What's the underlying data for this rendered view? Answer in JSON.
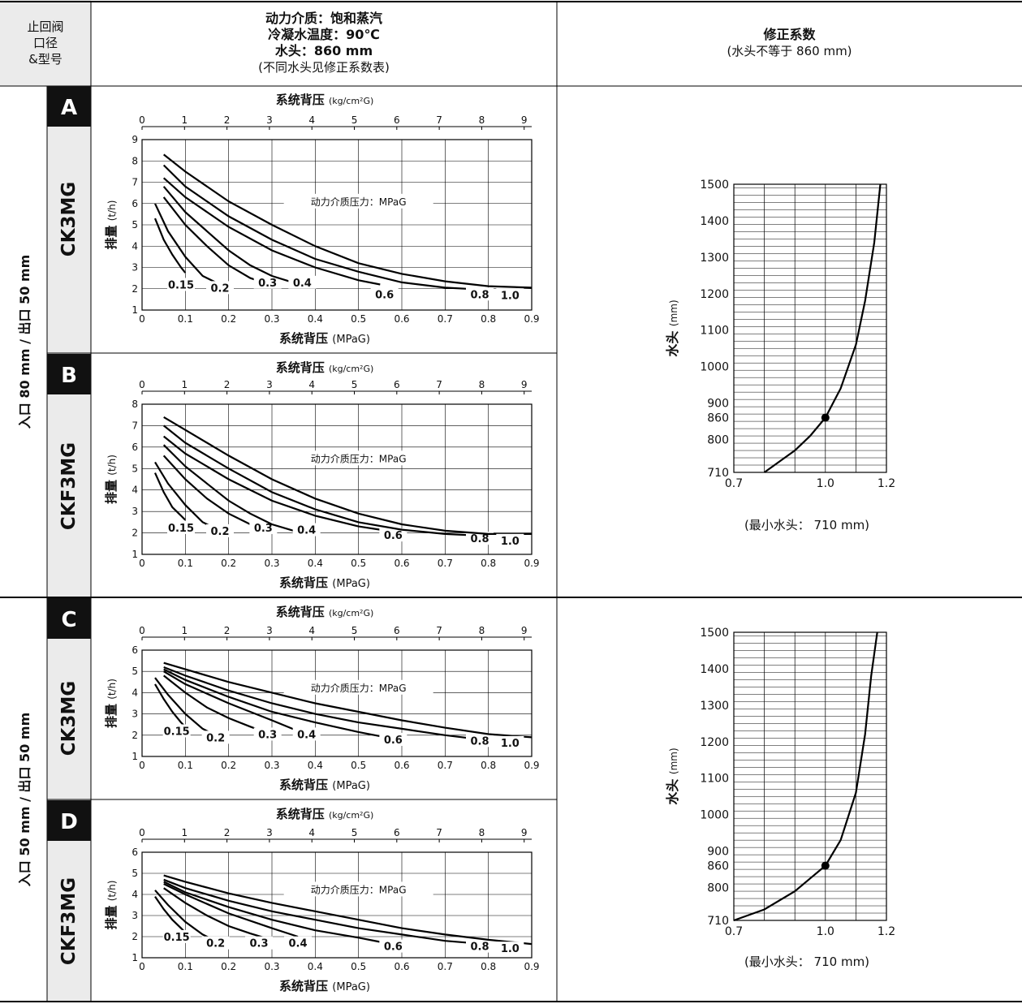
{
  "header": {
    "col1": [
      "止回阀",
      "口径",
      "&型号"
    ],
    "col2": [
      "动力介质：饱和蒸汽",
      "冷凝水温度：90℃",
      "水头：860 mm",
      "(不同水头见修正系数表)"
    ],
    "col3": [
      "修正系数",
      "(水头不等于 860 mm)"
    ]
  },
  "groups": [
    {
      "size_label": "入口 80 mm / 出口 50 mm"
    },
    {
      "size_label": "入口 50 mm / 出口 50 mm"
    }
  ],
  "chart_data": [
    {
      "type": "line",
      "id": "A",
      "letter": "A",
      "model": "CK3MG",
      "top_axis_label": "系统背压",
      "top_axis_unit": "(kg/cm²G)",
      "top_ticks": [
        "0",
        "1",
        "2",
        "3",
        "4",
        "5",
        "6",
        "7",
        "8",
        "9"
      ],
      "xlabel": "系统背压",
      "xlabel_unit": "(MPaG)",
      "ylabel": "排量",
      "ylabel_unit": "(t/h)",
      "xlim": [
        0,
        0.9
      ],
      "ylim": [
        1,
        9
      ],
      "x_ticks": [
        "0",
        "0.1",
        "0.2",
        "0.3",
        "0.4",
        "0.5",
        "0.6",
        "0.7",
        "0.8",
        "0.9"
      ],
      "y_ticks": [
        "1",
        "2",
        "3",
        "4",
        "5",
        "6",
        "7",
        "8",
        "9"
      ],
      "legend_title": "动力介质压力：MPaG",
      "series": [
        {
          "name": "0.15",
          "x": [
            0.03,
            0.05,
            0.07,
            0.09,
            0.1
          ],
          "y": [
            5.3,
            4.3,
            3.6,
            3.0,
            2.75
          ],
          "label_x": 0.09,
          "label_y": 2.05
        },
        {
          "name": "0.2",
          "x": [
            0.03,
            0.06,
            0.1,
            0.14,
            0.17
          ],
          "y": [
            6.0,
            4.7,
            3.5,
            2.6,
            2.3
          ],
          "label_x": 0.18,
          "label_y": 1.9
        },
        {
          "name": "0.3",
          "x": [
            0.05,
            0.1,
            0.15,
            0.2,
            0.25,
            0.28
          ],
          "y": [
            6.3,
            5.0,
            4.0,
            3.1,
            2.5,
            2.3
          ],
          "label_x": 0.29,
          "label_y": 2.15
        },
        {
          "name": "0.4",
          "x": [
            0.05,
            0.1,
            0.15,
            0.2,
            0.25,
            0.3,
            0.34
          ],
          "y": [
            6.8,
            5.6,
            4.7,
            3.8,
            3.1,
            2.6,
            2.35
          ],
          "label_x": 0.37,
          "label_y": 2.15
        },
        {
          "name": "0.6",
          "x": [
            0.05,
            0.1,
            0.2,
            0.3,
            0.4,
            0.5,
            0.55
          ],
          "y": [
            7.2,
            6.3,
            4.9,
            3.8,
            3.0,
            2.4,
            2.2
          ],
          "label_x": 0.56,
          "label_y": 1.6
        },
        {
          "name": "0.8",
          "x": [
            0.05,
            0.1,
            0.2,
            0.3,
            0.4,
            0.5,
            0.6,
            0.7,
            0.75
          ],
          "y": [
            7.8,
            6.8,
            5.4,
            4.3,
            3.4,
            2.8,
            2.3,
            2.05,
            2.0
          ],
          "label_x": 0.78,
          "label_y": 1.6
        },
        {
          "name": "1.0",
          "x": [
            0.05,
            0.1,
            0.2,
            0.3,
            0.4,
            0.5,
            0.6,
            0.7,
            0.8,
            0.9
          ],
          "y": [
            8.3,
            7.5,
            6.1,
            5.0,
            4.0,
            3.2,
            2.7,
            2.35,
            2.12,
            2.05
          ],
          "label_x": 0.85,
          "label_y": 1.55
        }
      ]
    },
    {
      "type": "line",
      "id": "B",
      "letter": "B",
      "model": "CKF3MG",
      "top_axis_label": "系统背压",
      "top_axis_unit": "(kg/cm²G)",
      "top_ticks": [
        "0",
        "1",
        "2",
        "3",
        "4",
        "5",
        "6",
        "7",
        "8",
        "9"
      ],
      "xlabel": "系统背压",
      "xlabel_unit": "(MPaG)",
      "ylabel": "排量",
      "ylabel_unit": "(t/h)",
      "xlim": [
        0,
        0.9
      ],
      "ylim": [
        1,
        8
      ],
      "x_ticks": [
        "0",
        "0.1",
        "0.2",
        "0.3",
        "0.4",
        "0.5",
        "0.6",
        "0.7",
        "0.8",
        "0.9"
      ],
      "y_ticks": [
        "1",
        "2",
        "3",
        "4",
        "5",
        "6",
        "7",
        "8"
      ],
      "legend_title": "动力介质压力：MPaG",
      "series": [
        {
          "name": "0.15",
          "x": [
            0.03,
            0.05,
            0.07,
            0.09,
            0.1
          ],
          "y": [
            4.8,
            3.9,
            3.2,
            2.8,
            2.6
          ],
          "label_x": 0.09,
          "label_y": 2.1
        },
        {
          "name": "0.2",
          "x": [
            0.03,
            0.06,
            0.1,
            0.14,
            0.17
          ],
          "y": [
            5.3,
            4.3,
            3.3,
            2.5,
            2.2
          ],
          "label_x": 0.18,
          "label_y": 1.95
        },
        {
          "name": "0.3",
          "x": [
            0.05,
            0.1,
            0.15,
            0.2,
            0.25,
            0.28
          ],
          "y": [
            5.6,
            4.5,
            3.6,
            2.9,
            2.4,
            2.2
          ],
          "label_x": 0.28,
          "label_y": 2.1
        },
        {
          "name": "0.4",
          "x": [
            0.05,
            0.1,
            0.15,
            0.2,
            0.25,
            0.3,
            0.35
          ],
          "y": [
            6.1,
            5.1,
            4.3,
            3.5,
            2.9,
            2.4,
            2.1
          ],
          "label_x": 0.38,
          "label_y": 2.0
        },
        {
          "name": "0.6",
          "x": [
            0.05,
            0.1,
            0.2,
            0.3,
            0.4,
            0.5,
            0.55
          ],
          "y": [
            6.5,
            5.7,
            4.5,
            3.5,
            2.8,
            2.3,
            2.15
          ],
          "label_x": 0.58,
          "label_y": 1.75
        },
        {
          "name": "0.8",
          "x": [
            0.05,
            0.1,
            0.2,
            0.3,
            0.4,
            0.5,
            0.6,
            0.7,
            0.75
          ],
          "y": [
            7.0,
            6.2,
            5.0,
            3.9,
            3.1,
            2.5,
            2.15,
            1.95,
            1.9
          ],
          "label_x": 0.78,
          "label_y": 1.6
        },
        {
          "name": "1.0",
          "x": [
            0.05,
            0.1,
            0.2,
            0.3,
            0.4,
            0.5,
            0.6,
            0.7,
            0.8,
            0.9
          ],
          "y": [
            7.4,
            6.8,
            5.6,
            4.5,
            3.6,
            2.9,
            2.4,
            2.1,
            1.95,
            1.95
          ],
          "label_x": 0.85,
          "label_y": 1.5
        }
      ]
    },
    {
      "type": "line",
      "id": "C",
      "letter": "C",
      "model": "CK3MG",
      "top_axis_label": "系统背压",
      "top_axis_unit": "(kg/cm²G)",
      "top_ticks": [
        "0",
        "1",
        "2",
        "3",
        "4",
        "5",
        "6",
        "7",
        "8",
        "9"
      ],
      "xlabel": "系统背压",
      "xlabel_unit": "(MPaG)",
      "ylabel": "排量",
      "ylabel_unit": "(t/h)",
      "xlim": [
        0,
        0.9
      ],
      "ylim": [
        1,
        6
      ],
      "x_ticks": [
        "0",
        "0.1",
        "0.2",
        "0.3",
        "0.4",
        "0.5",
        "0.6",
        "0.7",
        "0.8",
        "0.9"
      ],
      "y_ticks": [
        "1",
        "2",
        "3",
        "4",
        "5",
        "6"
      ],
      "legend_title": "动力介质压力：MPaG",
      "series": [
        {
          "name": "0.15",
          "x": [
            0.03,
            0.05,
            0.07,
            0.09,
            0.1
          ],
          "y": [
            4.4,
            3.7,
            3.1,
            2.6,
            2.4
          ],
          "label_x": 0.08,
          "label_y": 2.05
        },
        {
          "name": "0.2",
          "x": [
            0.03,
            0.06,
            0.1,
            0.14,
            0.16
          ],
          "y": [
            4.7,
            3.9,
            3.0,
            2.3,
            2.1
          ],
          "label_x": 0.17,
          "label_y": 1.75
        },
        {
          "name": "0.3",
          "x": [
            0.05,
            0.1,
            0.15,
            0.2,
            0.25,
            0.29
          ],
          "y": [
            4.8,
            4.0,
            3.3,
            2.8,
            2.4,
            2.1
          ],
          "label_x": 0.29,
          "label_y": 1.9
        },
        {
          "name": "0.4",
          "x": [
            0.05,
            0.1,
            0.2,
            0.3,
            0.36
          ],
          "y": [
            5.0,
            4.4,
            3.5,
            2.7,
            2.2
          ],
          "label_x": 0.38,
          "label_y": 1.9
        },
        {
          "name": "0.6",
          "x": [
            0.05,
            0.1,
            0.2,
            0.3,
            0.4,
            0.5,
            0.55
          ],
          "y": [
            5.1,
            4.6,
            3.8,
            3.1,
            2.6,
            2.15,
            1.95
          ],
          "label_x": 0.58,
          "label_y": 1.65
        },
        {
          "name": "0.8",
          "x": [
            0.05,
            0.1,
            0.2,
            0.3,
            0.4,
            0.5,
            0.6,
            0.7,
            0.76
          ],
          "y": [
            5.2,
            4.8,
            4.1,
            3.5,
            3.0,
            2.6,
            2.3,
            2.0,
            1.85
          ],
          "label_x": 0.78,
          "label_y": 1.6
        },
        {
          "name": "1.0",
          "x": [
            0.05,
            0.1,
            0.2,
            0.3,
            0.4,
            0.5,
            0.6,
            0.7,
            0.8,
            0.9
          ],
          "y": [
            5.4,
            5.1,
            4.5,
            4.0,
            3.5,
            3.1,
            2.7,
            2.35,
            2.05,
            1.9
          ],
          "label_x": 0.85,
          "label_y": 1.5
        }
      ]
    },
    {
      "type": "line",
      "id": "D",
      "letter": "D",
      "model": "CKF3MG",
      "top_axis_label": "系统背压",
      "top_axis_unit": "(kg/cm²G)",
      "top_ticks": [
        "0",
        "1",
        "2",
        "3",
        "4",
        "5",
        "6",
        "7",
        "8",
        "9"
      ],
      "xlabel": "系统背压",
      "xlabel_unit": "(MPaG)",
      "ylabel": "排量",
      "ylabel_unit": "(t/h)",
      "xlim": [
        0,
        0.9
      ],
      "ylim": [
        1,
        6
      ],
      "x_ticks": [
        "0",
        "0.1",
        "0.2",
        "0.3",
        "0.4",
        "0.5",
        "0.6",
        "0.7",
        "0.8",
        "0.9"
      ],
      "y_ticks": [
        "1",
        "2",
        "3",
        "4",
        "5",
        "6"
      ],
      "legend_title": "动力介质压力：MPaG",
      "series": [
        {
          "name": "0.15",
          "x": [
            0.03,
            0.05,
            0.07,
            0.09,
            0.1
          ],
          "y": [
            3.9,
            3.3,
            2.8,
            2.4,
            2.2
          ],
          "label_x": 0.08,
          "label_y": 1.85
        },
        {
          "name": "0.2",
          "x": [
            0.03,
            0.06,
            0.1,
            0.14,
            0.16
          ],
          "y": [
            4.2,
            3.5,
            2.7,
            2.1,
            1.9
          ],
          "label_x": 0.17,
          "label_y": 1.55
        },
        {
          "name": "0.3",
          "x": [
            0.05,
            0.1,
            0.15,
            0.2,
            0.25,
            0.29
          ],
          "y": [
            4.3,
            3.6,
            3.0,
            2.5,
            2.15,
            1.9
          ],
          "label_x": 0.27,
          "label_y": 1.55
        },
        {
          "name": "0.4",
          "x": [
            0.05,
            0.1,
            0.2,
            0.3,
            0.36
          ],
          "y": [
            4.5,
            4.0,
            3.1,
            2.4,
            2.0
          ],
          "label_x": 0.36,
          "label_y": 1.55
        },
        {
          "name": "0.6",
          "x": [
            0.05,
            0.1,
            0.2,
            0.3,
            0.4,
            0.5,
            0.55
          ],
          "y": [
            4.6,
            4.1,
            3.4,
            2.8,
            2.3,
            1.95,
            1.75
          ],
          "label_x": 0.58,
          "label_y": 1.4
        },
        {
          "name": "0.8",
          "x": [
            0.05,
            0.1,
            0.2,
            0.3,
            0.4,
            0.5,
            0.6,
            0.7,
            0.76
          ],
          "y": [
            4.7,
            4.3,
            3.7,
            3.2,
            2.8,
            2.4,
            2.1,
            1.8,
            1.7
          ],
          "label_x": 0.78,
          "label_y": 1.4
        },
        {
          "name": "1.0",
          "x": [
            0.05,
            0.1,
            0.2,
            0.3,
            0.4,
            0.5,
            0.6,
            0.7,
            0.8,
            0.9
          ],
          "y": [
            4.9,
            4.6,
            4.05,
            3.6,
            3.2,
            2.8,
            2.4,
            2.1,
            1.85,
            1.65
          ],
          "label_x": 0.85,
          "label_y": 1.3
        }
      ]
    },
    {
      "type": "line",
      "id": "E",
      "ylabel": "水头",
      "ylabel_unit": "(mm)",
      "xlim": [
        0.7,
        1.2
      ],
      "ylim": [
        710,
        1500
      ],
      "x_ticks": [
        "0.7",
        "1.0",
        "1.2"
      ],
      "y_ticks": [
        "710",
        "800",
        "860",
        "900",
        "1000",
        "1100",
        "1200",
        "1300",
        "1400",
        "1500"
      ],
      "note": "(最小水头：  710 mm)",
      "series": [
        {
          "x": [
            0.8,
            0.85,
            0.9,
            0.95,
            1.0,
            1.05,
            1.1,
            1.13,
            1.16,
            1.18
          ],
          "y": [
            710,
            740,
            770,
            810,
            860,
            940,
            1060,
            1180,
            1340,
            1500
          ]
        }
      ],
      "marker": {
        "x": 1.0,
        "y": 860
      }
    },
    {
      "type": "line",
      "id": "F",
      "ylabel": "水头",
      "ylabel_unit": "(mm)",
      "xlim": [
        0.7,
        1.2
      ],
      "ylim": [
        710,
        1500
      ],
      "x_ticks": [
        "0.7",
        "1.0",
        "1.2"
      ],
      "y_ticks": [
        "710",
        "800",
        "860",
        "900",
        "1000",
        "1100",
        "1200",
        "1300",
        "1400",
        "1500"
      ],
      "note": "(最小水头：  710 mm)",
      "series": [
        {
          "x": [
            0.7,
            0.8,
            0.9,
            0.95,
            1.0,
            1.05,
            1.1,
            1.13,
            1.15,
            1.17
          ],
          "y": [
            710,
            740,
            790,
            825,
            860,
            930,
            1060,
            1220,
            1380,
            1500
          ]
        }
      ],
      "marker": {
        "x": 1.0,
        "y": 860
      }
    }
  ]
}
